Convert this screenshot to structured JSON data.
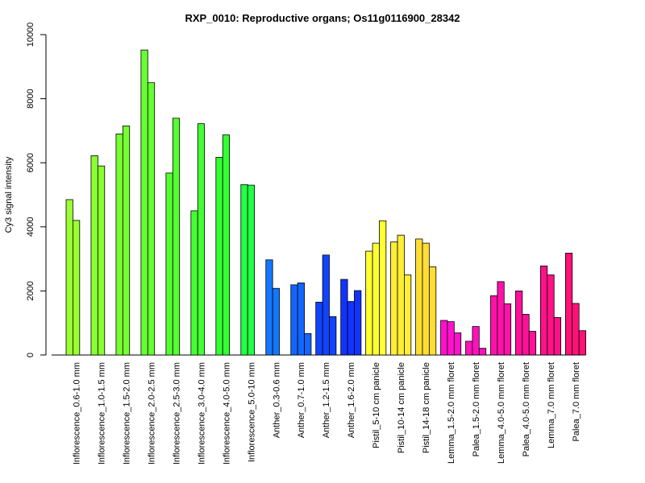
{
  "chart_data": {
    "type": "bar",
    "title": "RXP_0010: Reproductive organs; Os11g0116900_28342",
    "ylabel": "Cy3 signal intensity",
    "xlabel": "",
    "ylim": [
      0,
      10000
    ],
    "yticks": [
      0,
      2000,
      4000,
      6000,
      8000,
      10000
    ],
    "grid": false,
    "groups": [
      {
        "label": "Inflorescence_0.6-1.0 mm",
        "color": "#99FF33",
        "values": [
          4850,
          4200
        ]
      },
      {
        "label": "Inflorescence_1.0-1.5 mm",
        "color": "#88FF33",
        "values": [
          6220,
          5900
        ]
      },
      {
        "label": "Inflorescence_1.5-2.0 mm",
        "color": "#77FF33",
        "values": [
          6900,
          7150
        ]
      },
      {
        "label": "Inflorescence_2.0-2.5 mm",
        "color": "#66FF33",
        "values": [
          9520,
          8500
        ]
      },
      {
        "label": "Inflorescence_2.5-3.0 mm",
        "color": "#55FF33",
        "values": [
          5680,
          7390
        ]
      },
      {
        "label": "Inflorescence_3.0-4.0 mm",
        "color": "#44FF33",
        "values": [
          4500,
          7220
        ]
      },
      {
        "label": "Inflorescence_4.0-5.0 mm",
        "color": "#33FF33",
        "values": [
          6170,
          6870
        ]
      },
      {
        "label": "Inflorescence_5.0-10 mm",
        "color": "#22FF44",
        "values": [
          5320,
          5300
        ]
      },
      {
        "label": "Anther_0.3-0.6 mm",
        "color": "#1177FF",
        "values": [
          2970,
          2080
        ]
      },
      {
        "label": "Anther_0.7-1.0 mm",
        "color": "#1166FF",
        "values": [
          2190,
          2250,
          670
        ]
      },
      {
        "label": "Anther_1.2-1.5 mm",
        "color": "#1144FF",
        "values": [
          1650,
          3120,
          1200
        ]
      },
      {
        "label": "Anther_1.6-2.0 mm",
        "color": "#1133FF",
        "values": [
          2360,
          1670,
          2010
        ]
      },
      {
        "label": "Pistil_5-10 cm panicle",
        "color": "#FFFF33",
        "values": [
          3240,
          3490,
          4190
        ]
      },
      {
        "label": "Pistil_10-14 cm panicle",
        "color": "#FFEE33",
        "values": [
          3530,
          3740,
          2500
        ]
      },
      {
        "label": "Pistil_14-18 cm panicle",
        "color": "#FFDD33",
        "values": [
          3620,
          3490,
          2750
        ]
      },
      {
        "label": "Lemma_1.5-2.0 mm floret",
        "color": "#FF11CC",
        "values": [
          1080,
          1040,
          690
        ]
      },
      {
        "label": "Palea_1.5-2.0 mm floret",
        "color": "#FF11BB",
        "values": [
          430,
          890,
          210
        ]
      },
      {
        "label": "Lemma_4.0-5.0 mm floret",
        "color": "#FF11AA",
        "values": [
          1850,
          2290,
          1600
        ]
      },
      {
        "label": "Palea_4.0-5.0 mm floret",
        "color": "#FF1199",
        "values": [
          2000,
          1270,
          740
        ]
      },
      {
        "label": "Lemma_7.0 mm floret",
        "color": "#FF1188",
        "values": [
          2780,
          2500,
          1170
        ]
      },
      {
        "label": "Palea_7.0 mm floret",
        "color": "#FF1177",
        "values": [
          3180,
          1610,
          760
        ]
      }
    ]
  }
}
